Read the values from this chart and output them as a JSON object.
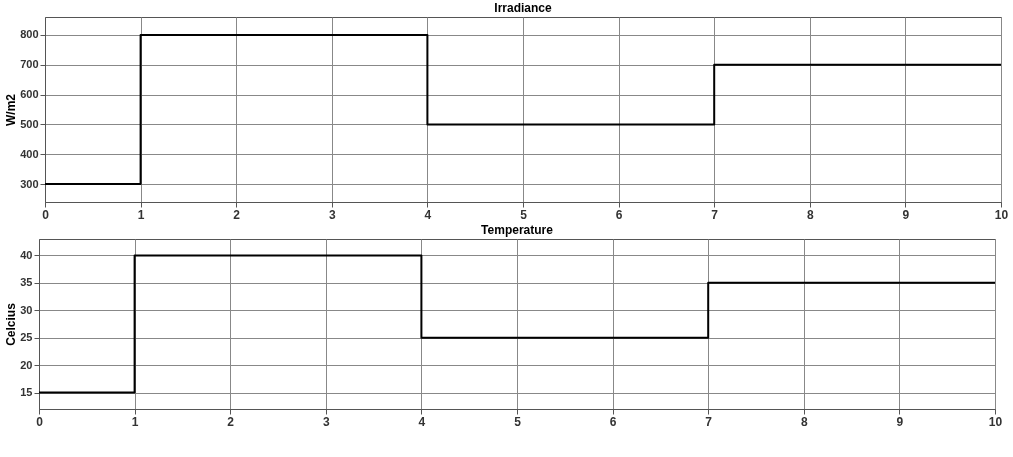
{
  "chart_data": [
    {
      "type": "step",
      "title": "Irradiance",
      "ylabel": "W/m2",
      "x": [
        0,
        1,
        4,
        7,
        10
      ],
      "series": [
        {
          "color": "#000000",
          "values": [
            300,
            800,
            500,
            700,
            700
          ]
        }
      ],
      "xlim": [
        0,
        10
      ],
      "xticks": [
        0,
        1,
        2,
        3,
        4,
        5,
        6,
        7,
        8,
        9,
        10
      ],
      "ylim": [
        240,
        860
      ],
      "yticks": [
        300,
        400,
        500,
        600,
        700,
        800
      ],
      "grid": true
    },
    {
      "type": "step",
      "title": "Temperature",
      "ylabel": "Celcius",
      "x": [
        0,
        1,
        4,
        7,
        10
      ],
      "series": [
        {
          "color": "#000000",
          "values": [
            15,
            40,
            25,
            35,
            35
          ]
        }
      ],
      "xlim": [
        0,
        10
      ],
      "xticks": [
        0,
        1,
        2,
        3,
        4,
        5,
        6,
        7,
        8,
        9,
        10
      ],
      "ylim": [
        12,
        43
      ],
      "yticks": [
        15,
        20,
        25,
        30,
        35,
        40
      ],
      "grid": true
    }
  ]
}
